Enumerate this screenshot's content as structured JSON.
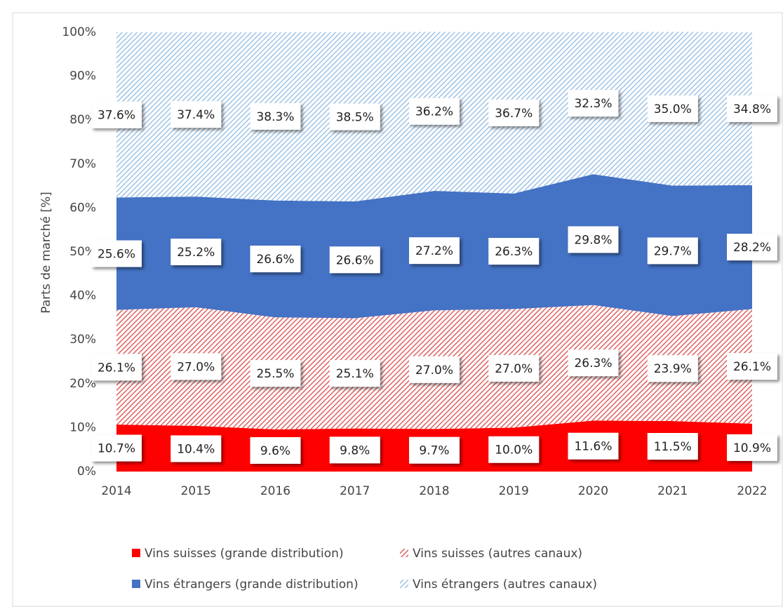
{
  "chart_data": {
    "type": "stacked_area",
    "y_label": "Parts de marché  [%]",
    "categories": [
      "2014",
      "2015",
      "2016",
      "2017",
      "2018",
      "2019",
      "2020",
      "2021",
      "2022"
    ],
    "series": [
      {
        "name": "Vins suisses (grande distribution)",
        "color": "#ff0000",
        "hatch": false,
        "values": [
          10.7,
          10.4,
          9.6,
          9.8,
          9.7,
          10.0,
          11.6,
          11.5,
          10.9
        ],
        "value_labels": [
          "10.7%",
          "10.4%",
          "9.6%",
          "9.8%",
          "9.7%",
          "10.0%",
          "11.6%",
          "11.5%",
          "10.9%"
        ]
      },
      {
        "name": "Vins suisses (autres canaux)",
        "color": "#e06060",
        "hatch": true,
        "values": [
          26.1,
          27.0,
          25.5,
          25.1,
          27.0,
          27.0,
          26.3,
          23.9,
          26.1
        ],
        "value_labels": [
          "26.1%",
          "27.0%",
          "25.5%",
          "25.1%",
          "27.0%",
          "27.0%",
          "26.3%",
          "23.9%",
          "26.1%"
        ]
      },
      {
        "name": "Vins étrangers (grande distribution)",
        "color": "#4472c4",
        "hatch": false,
        "values": [
          25.6,
          25.2,
          26.6,
          26.6,
          27.2,
          26.3,
          29.8,
          29.7,
          28.2
        ],
        "value_labels": [
          "25.6%",
          "25.2%",
          "26.6%",
          "26.6%",
          "27.2%",
          "26.3%",
          "29.8%",
          "29.7%",
          "28.2%"
        ]
      },
      {
        "name": "Vins étrangers (autres canaux)",
        "color": "#9dc3e6",
        "hatch": true,
        "values": [
          37.6,
          37.4,
          38.3,
          38.5,
          36.2,
          36.7,
          32.3,
          35.0,
          34.8
        ],
        "value_labels": [
          "37.6%",
          "37.4%",
          "38.3%",
          "38.5%",
          "36.2%",
          "36.7%",
          "32.3%",
          "35.0%",
          "34.8%"
        ]
      }
    ],
    "ylim": [
      0,
      100
    ],
    "yticks": [
      {
        "value": 0,
        "label": "0%"
      },
      {
        "value": 10,
        "label": "10%"
      },
      {
        "value": 20,
        "label": "20%"
      },
      {
        "value": 30,
        "label": "30%"
      },
      {
        "value": 40,
        "label": "40%"
      },
      {
        "value": 50,
        "label": "50%"
      },
      {
        "value": 60,
        "label": "60%"
      },
      {
        "value": 70,
        "label": "70%"
      },
      {
        "value": 80,
        "label": "80%"
      },
      {
        "value": 90,
        "label": "90%"
      },
      {
        "value": 100,
        "label": "100%"
      }
    ],
    "legend": "bottom"
  }
}
